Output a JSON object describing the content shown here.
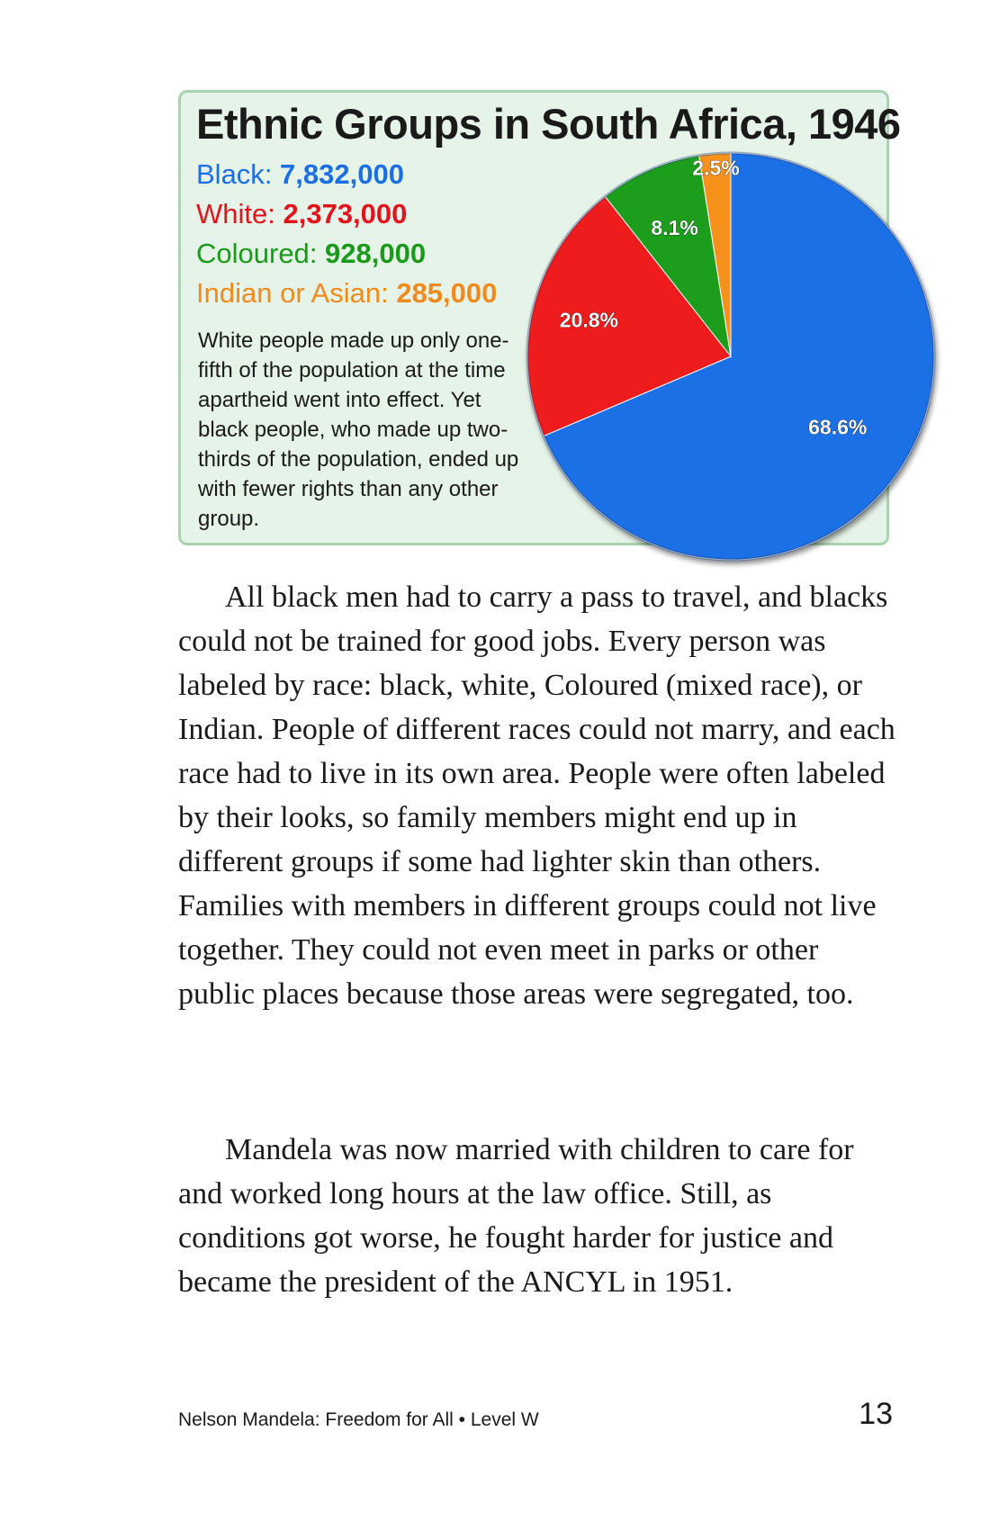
{
  "chart_data": {
    "type": "pie",
    "title": "Ethnic Groups in South Africa, 1946",
    "slices": [
      {
        "name": "Black",
        "value": 7832000,
        "value_label": "7,832,000",
        "percent": 68.6,
        "percent_label": "68.6%",
        "color": "#1a6fe6"
      },
      {
        "name": "White",
        "value": 2373000,
        "value_label": "2,373,000",
        "percent": 20.8,
        "percent_label": "20.8%",
        "color": "#ee1c1c"
      },
      {
        "name": "Coloured",
        "value": 928000,
        "value_label": "928,000",
        "percent": 8.1,
        "percent_label": "8.1%",
        "color": "#1e9e1e"
      },
      {
        "name": "Indian or Asian",
        "value": 285000,
        "value_label": "285,000",
        "percent": 2.5,
        "percent_label": "2.5%",
        "color": "#f6921e"
      }
    ],
    "legend_colors": {
      "Black": "#1a6fe6",
      "White": "#e4121b",
      "Coloured": "#1a9a1a",
      "Indian or Asian": "#f08a1c"
    },
    "caption": "White people made up only one-fifth of the population at the time apartheid went into effect. Yet black people, who made up two-thirds of the population, ended up with fewer rights than any other group."
  },
  "body": {
    "paragraph_1": "All black men had to carry a pass to travel, and blacks could not be trained for good jobs. Every person was labeled by race: black, white, Coloured (mixed race), or Indian. People of different races could not marry, and each race had to live in its own area. People were often labeled by their looks, so family members might end up in different groups if some had lighter skin than others. Families with members in different groups could not live together. They could not even meet in parks or other public places because those areas were segregated, too.",
    "paragraph_2": "Mandela was now married with children to care for and worked long hours at the law office. Still, as conditions got worse, he fought harder for justice and became the president of the ANCYL in 1951."
  },
  "footer": {
    "book_title": "Nelson Mandela: Freedom for All • Level W",
    "page_number": "13"
  }
}
